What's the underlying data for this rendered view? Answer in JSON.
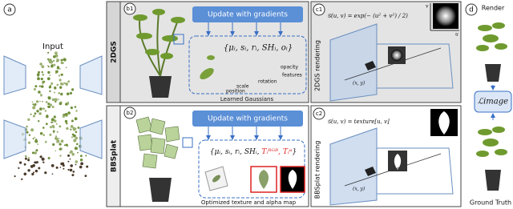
{
  "panels": {
    "a": {
      "label": "a",
      "title": "Input"
    },
    "b1": {
      "label": "b1",
      "method": "2DGS",
      "update": "Update with gradients",
      "params": "{μᵢ, sᵢ, rᵢ, SHᵢ, oᵢ}",
      "annotations": [
        "opacity",
        "features",
        "rotation",
        "scale",
        "position"
      ],
      "caption": "Learned Gaussians"
    },
    "b2": {
      "label": "b2",
      "method": "BBSplat",
      "update": "Update with gradients",
      "params": [
        "{μᵢ, sᵢ, rᵢ, SHᵢ, ",
        "Tᵢᴿᴳᴮ, Tᵢᵅ",
        "}"
      ],
      "caption": "Optimized texture and alpha map"
    },
    "c1": {
      "label": "c1",
      "formula": "𝒢(u, v) = exp(− (u² + v²) / 2)",
      "title": "2DGS rendering",
      "axis_u": "u",
      "axis_v": "v",
      "point": "(x, y)"
    },
    "c2": {
      "label": "c2",
      "formula": "𝒢(u, v) = texture[u, v]",
      "title": "BBSplat rendering",
      "point": "(x, y)"
    },
    "d": {
      "label": "d",
      "top": "Render",
      "loss": "ℒimage",
      "bottom": "Ground Truth"
    }
  }
}
